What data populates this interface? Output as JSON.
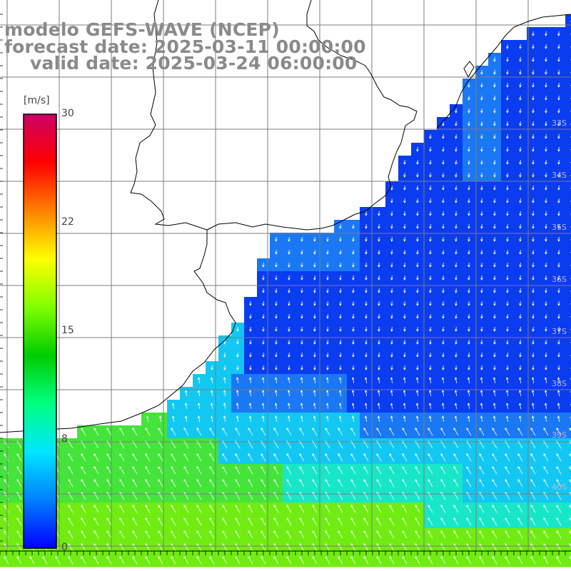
{
  "title": {
    "model": "modelo GEFS-WAVE (NCEP)",
    "forecast": "forecast date: 2025-03-11 00:00:00",
    "valid": "valid date: 2025-03-24 06:00:00"
  },
  "colorbar": {
    "units": "[m/s]",
    "ticks": [
      "30",
      "22",
      "15",
      "8",
      "0"
    ],
    "min": 0,
    "max": 30,
    "colors": [
      "#0000ff",
      "#0080ff",
      "#00e6ff",
      "#00ff80",
      "#00cc00",
      "#80ff00",
      "#ffff00",
      "#ff8000",
      "#ff0000",
      "#cc0066"
    ]
  },
  "map": {
    "latitude_labels": [
      "33S",
      "34S",
      "35S",
      "36S",
      "37S",
      "38S",
      "39S",
      "40S"
    ],
    "ocean_colors": {
      "calm": "#0a3cf0",
      "light": "#1a78f5",
      "moderate": "#12c8f2",
      "fresh": "#18e6c8",
      "strong": "#44e43a",
      "stronger": "#70ec12"
    },
    "arrow_color": "#ffffff",
    "coastline_color": "#000000",
    "grid_color": "#7c7c7c"
  }
}
